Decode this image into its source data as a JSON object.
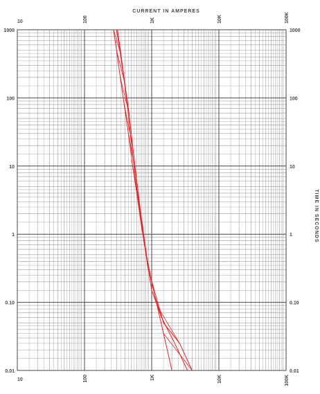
{
  "chart_data": {
    "type": "line",
    "xlabel": "CURRENT IN AMPERES",
    "ylabel": "TIME IN SECONDS",
    "x_scale": "log",
    "y_scale": "log",
    "xlim": [
      10,
      100000
    ],
    "ylim": [
      0.01,
      1000
    ],
    "grid": true,
    "x_ticks": [
      {
        "value": 10,
        "label": "10"
      },
      {
        "value": 100,
        "label": "100"
      },
      {
        "value": 1000,
        "label": "1K"
      },
      {
        "value": 10000,
        "label": "10K"
      },
      {
        "value": 100000,
        "label": "100K"
      }
    ],
    "y_ticks": [
      {
        "value": 1000,
        "label": "1000"
      },
      {
        "value": 100,
        "label": "100"
      },
      {
        "value": 10,
        "label": "10"
      },
      {
        "value": 1,
        "label": "1"
      },
      {
        "value": 0.1,
        "label": "0.10"
      },
      {
        "value": 0.01,
        "label": "0.01"
      }
    ],
    "colors": {
      "curve": "#e0262b",
      "grid_major": "#444444",
      "grid_minor": "#9a9a9a",
      "text": "#444444"
    },
    "series": [
      {
        "x": [
          270,
          300,
          340,
          390,
          450,
          520,
          600,
          690,
          800,
          950,
          1200,
          1500,
          2000
        ],
        "y": [
          1000,
          500,
          200,
          80,
          30,
          10,
          4,
          1.5,
          0.6,
          0.25,
          0.09,
          0.035,
          0.01
        ]
      },
      {
        "x": [
          300,
          340,
          390,
          440,
          490,
          560,
          640,
          740,
          850,
          1000,
          1400,
          2200,
          3400
        ],
        "y": [
          1000,
          450,
          180,
          70,
          25,
          8,
          3,
          1,
          0.4,
          0.15,
          0.06,
          0.025,
          0.01
        ]
      },
      {
        "x": [
          310,
          350,
          400,
          460,
          520,
          590,
          670,
          770,
          880,
          1100,
          1500,
          2600,
          4000
        ],
        "y": [
          1000,
          420,
          160,
          60,
          20,
          7,
          2.5,
          0.9,
          0.35,
          0.13,
          0.05,
          0.025,
          0.01
        ]
      }
    ]
  }
}
